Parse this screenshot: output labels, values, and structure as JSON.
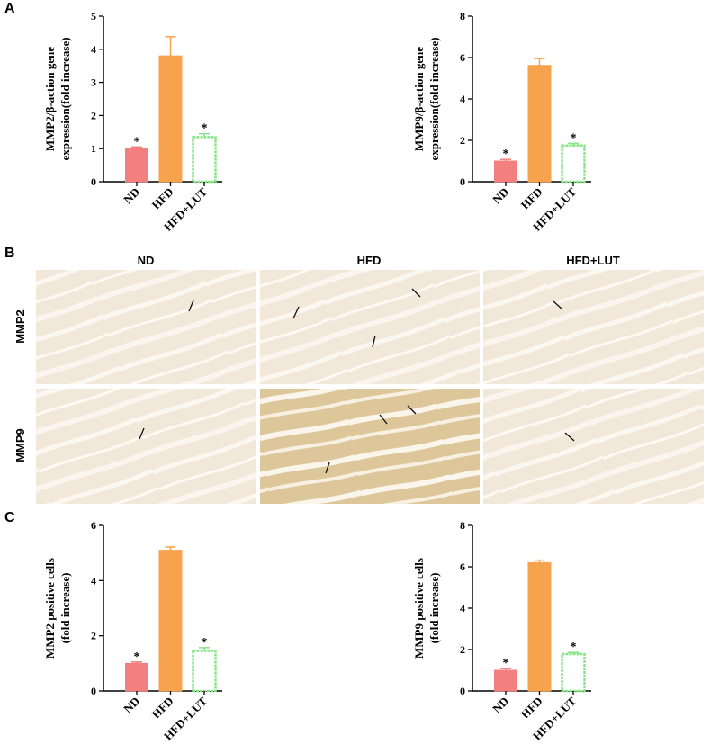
{
  "panels": {
    "A": "A",
    "B": "B",
    "C": "C"
  },
  "images": {
    "columns": [
      "ND",
      "HFD",
      "HFD+LUT"
    ],
    "rows": [
      "MMP2",
      "MMP9"
    ]
  },
  "chart_data": [
    {
      "type": "bar",
      "ylabel": [
        "MMP2/β-action gene",
        "expression(fold increase)"
      ],
      "categories": [
        "ND",
        "HFD",
        "HFD+LUT"
      ],
      "values": [
        1.0,
        3.8,
        1.35
      ],
      "errors": [
        0.05,
        0.58,
        0.1
      ],
      "colors": [
        "#f47f7f",
        "#f7a24c",
        "#86e486"
      ],
      "hollow": [
        false,
        false,
        true
      ],
      "annotations": [
        {
          "category": "ND",
          "text": "*"
        },
        {
          "category": "HFD+LUT",
          "text": "*"
        }
      ],
      "ylim": [
        0,
        5
      ],
      "yticks": [
        0,
        1,
        2,
        3,
        4,
        5
      ]
    },
    {
      "type": "bar",
      "ylabel": [
        "MMP9/β-action gene",
        "expression(fold increase)"
      ],
      "categories": [
        "ND",
        "HFD",
        "HFD+LUT"
      ],
      "values": [
        1.0,
        5.62,
        1.75
      ],
      "errors": [
        0.08,
        0.33,
        0.1
      ],
      "colors": [
        "#f47f7f",
        "#f7a24c",
        "#86e486"
      ],
      "hollow": [
        false,
        false,
        true
      ],
      "annotations": [
        {
          "category": "ND",
          "text": "*"
        },
        {
          "category": "HFD+LUT",
          "text": "*"
        }
      ],
      "ylim": [
        0,
        8
      ],
      "yticks": [
        0,
        2,
        4,
        6,
        8
      ]
    },
    {
      "type": "bar",
      "ylabel": [
        "MMP2 positive cells",
        "(fold increase)"
      ],
      "categories": [
        "ND",
        "HFD",
        "HFD+LUT"
      ],
      "values": [
        1.0,
        5.1,
        1.45
      ],
      "errors": [
        0.05,
        0.12,
        0.12
      ],
      "colors": [
        "#f47f7f",
        "#f7a24c",
        "#86e486"
      ],
      "hollow": [
        false,
        false,
        true
      ],
      "annotations": [
        {
          "category": "ND",
          "text": "*"
        },
        {
          "category": "HFD+LUT",
          "text": "*"
        }
      ],
      "ylim": [
        0,
        6
      ],
      "yticks": [
        0,
        2,
        4,
        6
      ]
    },
    {
      "type": "bar",
      "ylabel": [
        "MMP9 positive cells",
        "(fold increase)"
      ],
      "categories": [
        "ND",
        "HFD",
        "HFD+LUT"
      ],
      "values": [
        1.0,
        6.2,
        1.78
      ],
      "errors": [
        0.08,
        0.12,
        0.08
      ],
      "colors": [
        "#f47f7f",
        "#f7a24c",
        "#86e486"
      ],
      "hollow": [
        false,
        false,
        true
      ],
      "annotations": [
        {
          "category": "ND",
          "text": "*"
        },
        {
          "category": "HFD+LUT",
          "text": "*"
        }
      ],
      "ylim": [
        0,
        8
      ],
      "yticks": [
        0,
        2,
        4,
        6,
        8
      ]
    }
  ]
}
